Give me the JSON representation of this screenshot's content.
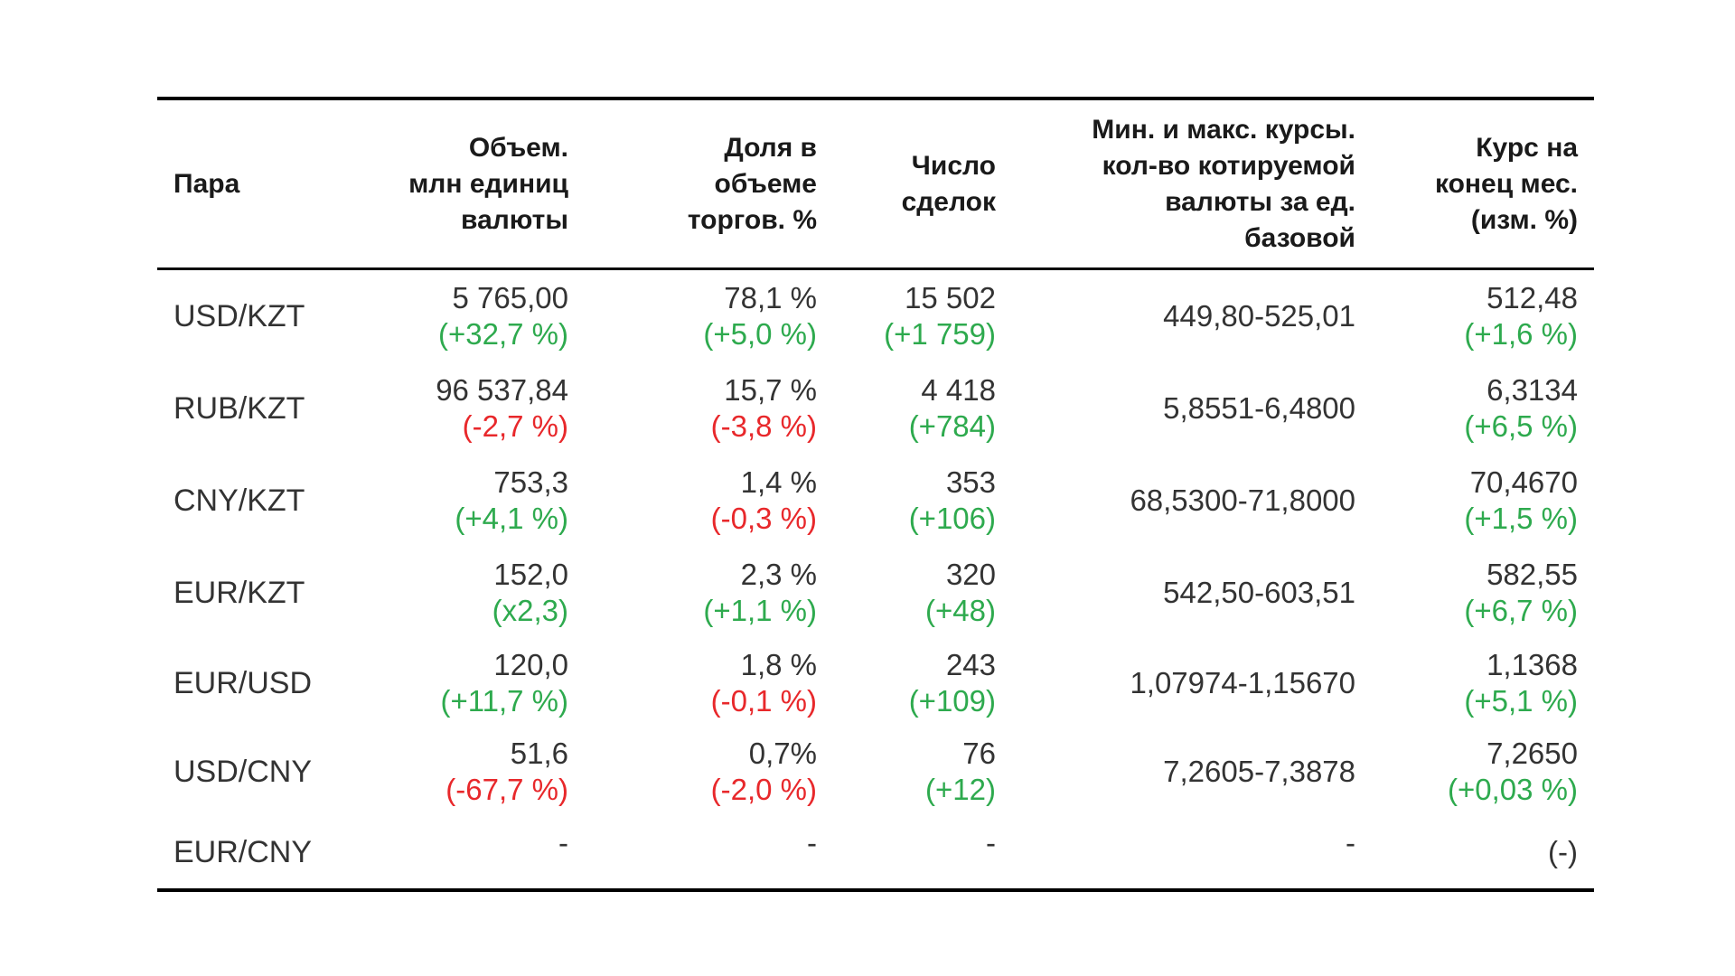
{
  "headers": {
    "pair": "Пара",
    "volume": [
      "Объем.",
      "млн единиц",
      "валюты"
    ],
    "share": [
      "Доля в",
      "объеме",
      "торгов. %"
    ],
    "deals": [
      "Число",
      "сделок"
    ],
    "range": [
      "Мин. и макс. курсы.",
      "кол-во котируемой",
      "валюты за ед.",
      "базовой"
    ],
    "close": [
      "Курс на",
      "конец мес.",
      "(изм. %)"
    ]
  },
  "rows": [
    {
      "pair": "USD/KZT",
      "volume": "5 765,00",
      "volume_chg": "(+32,7 %)",
      "share": "78,1 %",
      "share_chg": "(+5,0 %)",
      "deals": "15 502",
      "deals_chg": "(+1 759)",
      "range": "449,80-525,01",
      "close": "512,48",
      "close_chg": "(+1,6 %)"
    },
    {
      "pair": "RUB/KZT",
      "volume": "96 537,84",
      "volume_chg": "(-2,7 %)",
      "share": "15,7 %",
      "share_chg": "(-3,8 %)",
      "deals": "4 418",
      "deals_chg": "(+784)",
      "range": "5,8551-6,4800",
      "close": "6,3134",
      "close_chg": "(+6,5 %)"
    },
    {
      "pair": "CNY/KZT",
      "volume": "753,3",
      "volume_chg": "(+4,1 %)",
      "share": "1,4 %",
      "share_chg": "(-0,3 %)",
      "deals": "353",
      "deals_chg": "(+106)",
      "range": "68,5300-71,8000",
      "close": "70,4670",
      "close_chg": "(+1,5 %)"
    },
    {
      "pair": "EUR/KZT",
      "volume": "152,0",
      "volume_chg": "(x2,3)",
      "share": "2,3 %",
      "share_chg": "(+1,1 %)",
      "deals": "320",
      "deals_chg": "(+48)",
      "range": "542,50-603,51",
      "close": "582,55",
      "close_chg": "(+6,7 %)"
    },
    {
      "pair": "EUR/USD",
      "volume": "120,0",
      "volume_chg": "(+11,7 %)",
      "share": "1,8 %",
      "share_chg": "(-0,1 %)",
      "deals": "243",
      "deals_chg": "(+109)",
      "range": "1,07974-1,15670",
      "close": "1,1368",
      "close_chg": "(+5,1 %)"
    },
    {
      "pair": "USD/CNY",
      "volume": "51,6",
      "volume_chg": "(-67,7 %)",
      "share": "0,7%",
      "share_chg": "(-2,0 %)",
      "deals": "76",
      "deals_chg": "(+12)",
      "range": "7,2605-7,3878",
      "close": "7,2650",
      "close_chg": "(+0,03 %)"
    },
    {
      "pair": "EUR/CNY",
      "volume": "-",
      "share": "-",
      "deals": "-",
      "range": "-",
      "close": "(-)"
    }
  ],
  "colors": {
    "up": "#2eaa4e",
    "down": "#e8282b",
    "text": "#333333",
    "rule": "#000000"
  }
}
